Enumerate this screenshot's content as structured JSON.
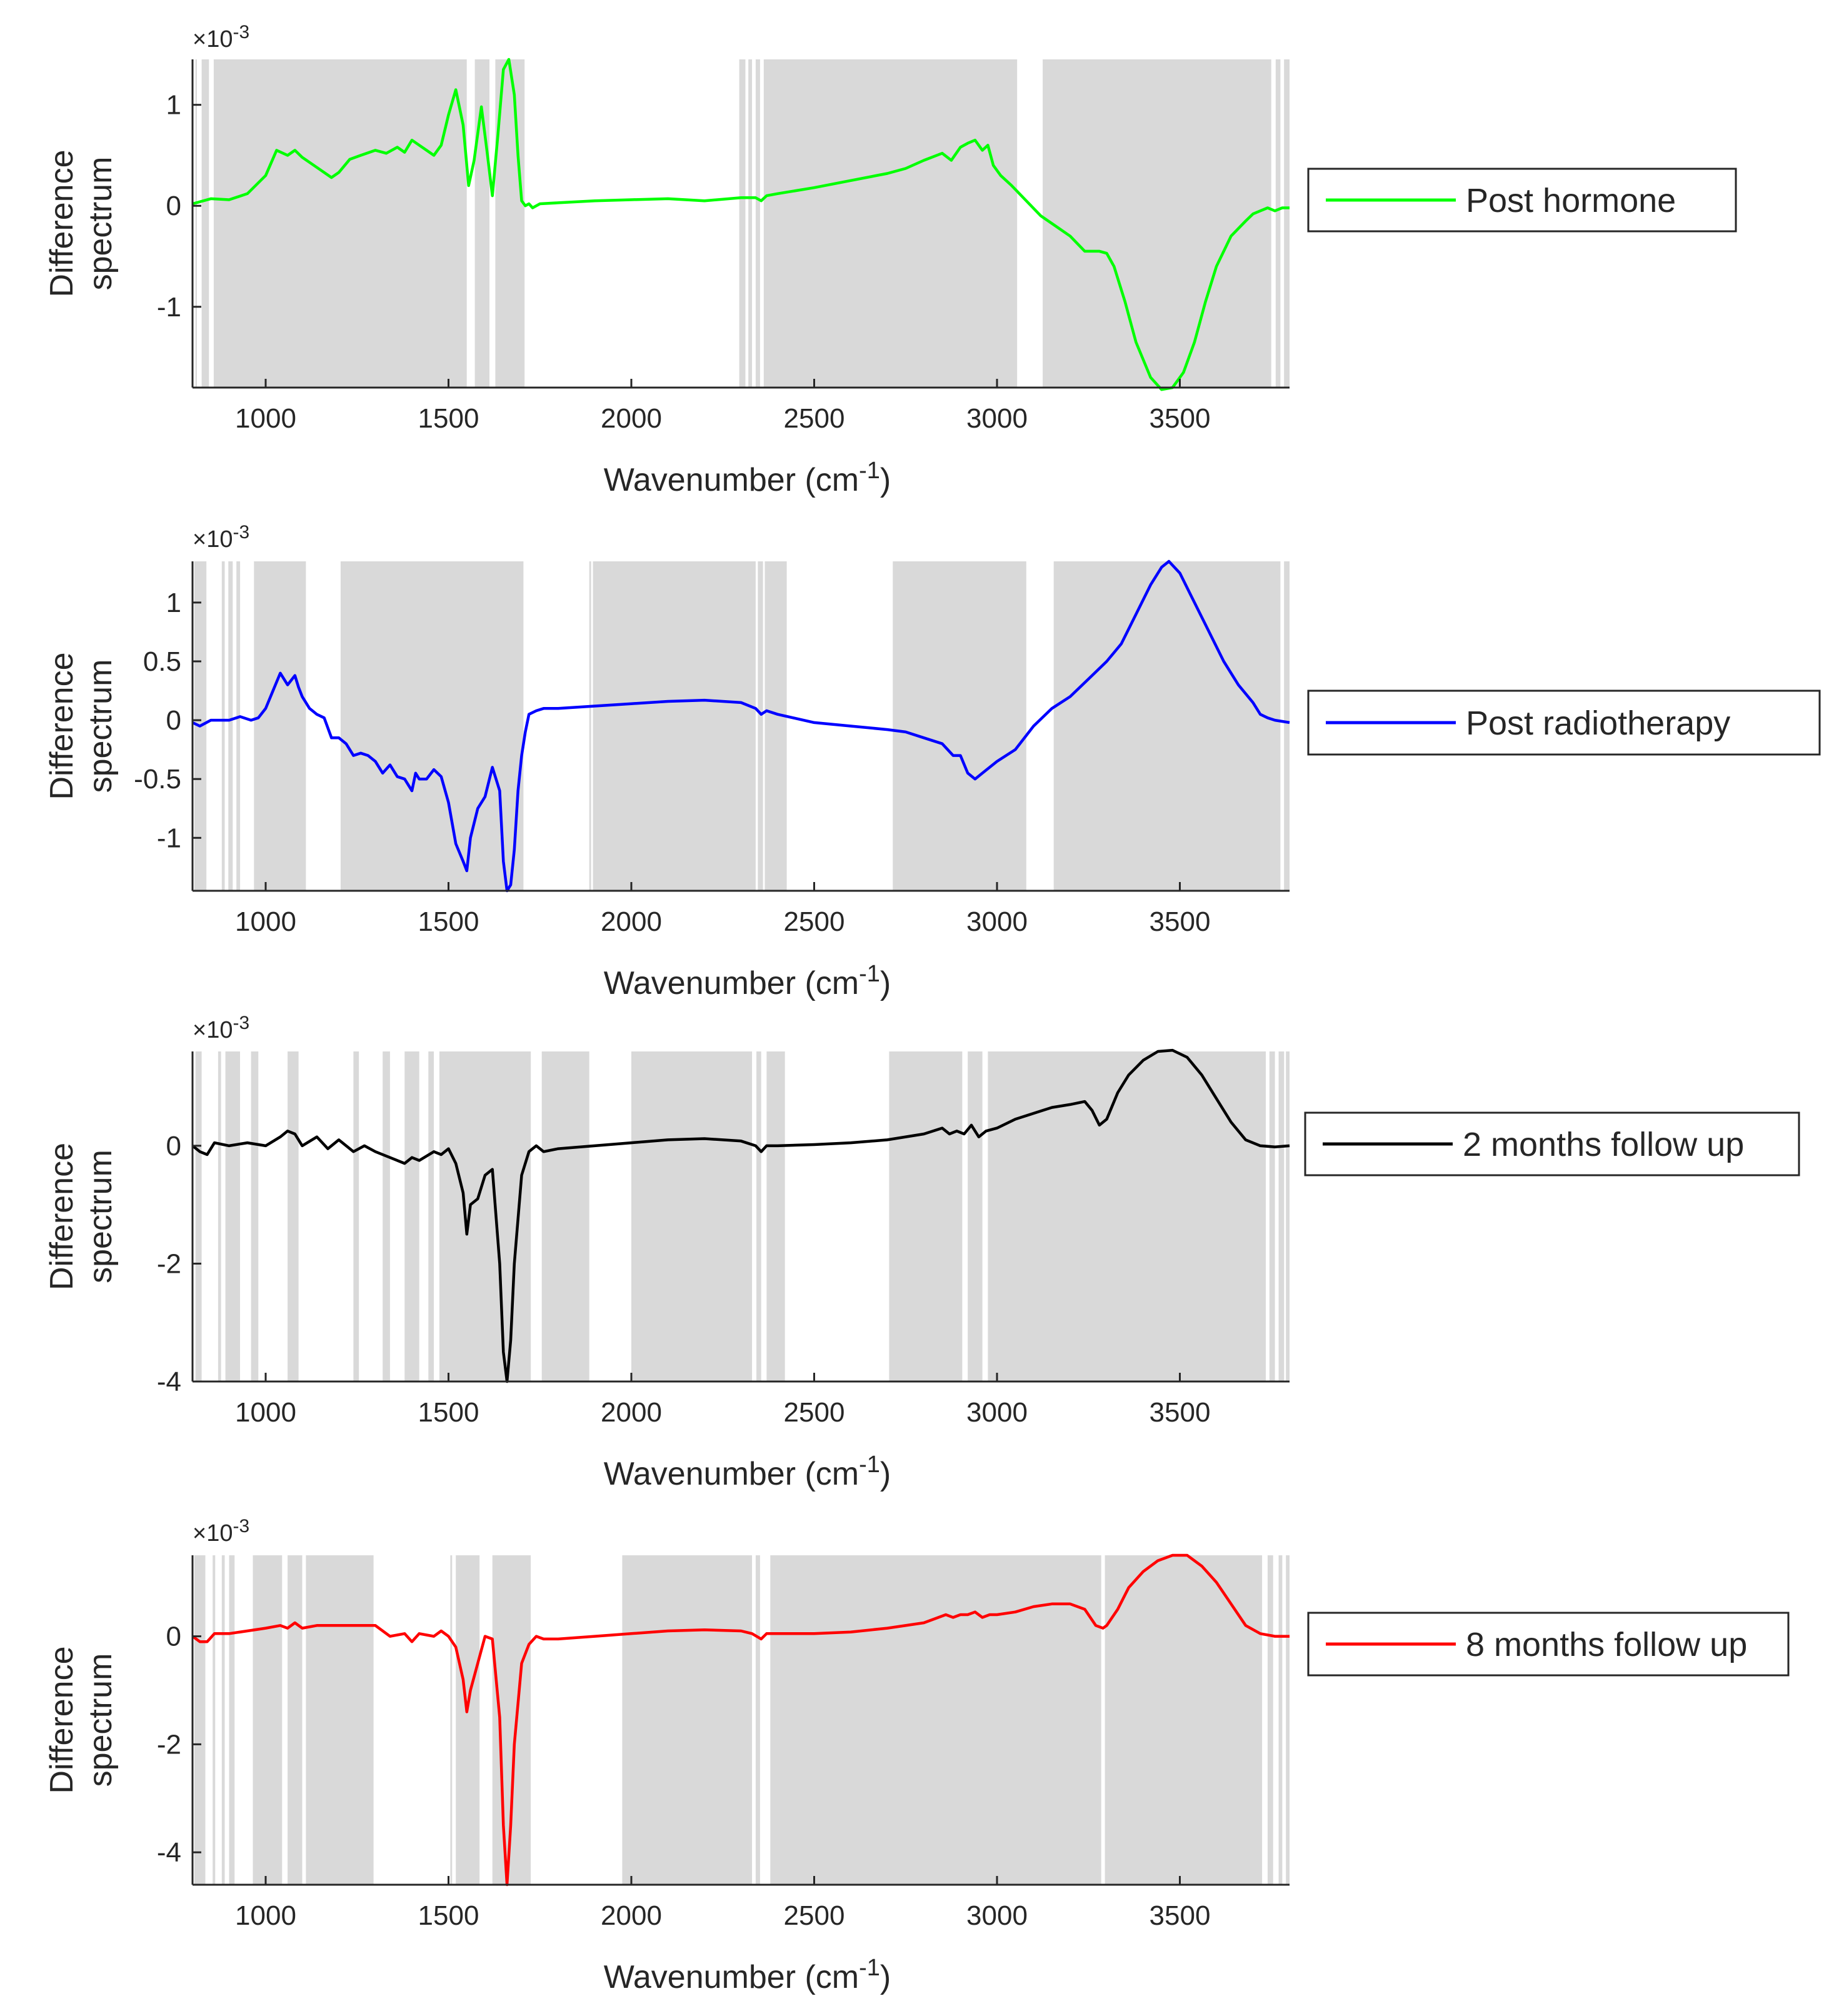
{
  "figure": {
    "xlabel": "Wavenumber (cm",
    "xlabel_exp": "-1",
    "xlabel_end": ")",
    "ylabel_line1": "Difference",
    "ylabel_line2": "spectrum",
    "multiplier_prefix": "×10",
    "multiplier_exp": "-3"
  },
  "chart_data": [
    {
      "type": "line",
      "legend": "Post hormone",
      "color": "#00ff00",
      "xlim": [
        800,
        3800
      ],
      "ylim": [
        -1.8,
        1.45
      ],
      "yticks": [
        1,
        0,
        -1
      ],
      "ytick_labels": [
        "1",
        "0",
        "-1"
      ],
      "xticks": [
        1000,
        1500,
        2000,
        2500,
        3000,
        3500
      ],
      "xtick_labels": [
        "1000",
        "1500",
        "2000",
        "2500",
        "3000",
        "3500"
      ],
      "shaded_regions": [
        [
          808,
          812
        ],
        [
          825,
          845
        ],
        [
          858,
          1550
        ],
        [
          1572,
          1612
        ],
        [
          1628,
          1708
        ],
        [
          2295,
          2312
        ],
        [
          2320,
          2330
        ],
        [
          2340,
          2352
        ],
        [
          2362,
          3055
        ],
        [
          3125,
          3750
        ],
        [
          3762,
          3775
        ],
        [
          3785,
          3800
        ]
      ],
      "x": [
        800,
        850,
        900,
        950,
        1000,
        1030,
        1060,
        1080,
        1100,
        1140,
        1180,
        1200,
        1230,
        1260,
        1300,
        1330,
        1360,
        1380,
        1400,
        1420,
        1440,
        1460,
        1480,
        1500,
        1520,
        1540,
        1555,
        1570,
        1590,
        1605,
        1620,
        1635,
        1650,
        1665,
        1680,
        1690,
        1700,
        1710,
        1720,
        1730,
        1750,
        1800,
        1900,
        2000,
        2100,
        2200,
        2300,
        2340,
        2355,
        2370,
        2400,
        2500,
        2600,
        2700,
        2750,
        2800,
        2850,
        2875,
        2900,
        2920,
        2940,
        2960,
        2975,
        2990,
        3010,
        3040,
        3080,
        3120,
        3160,
        3200,
        3240,
        3280,
        3300,
        3320,
        3350,
        3380,
        3420,
        3450,
        3480,
        3510,
        3540,
        3570,
        3600,
        3640,
        3680,
        3700,
        3720,
        3740,
        3760,
        3780,
        3800
      ],
      "y": [
        0.02,
        0.07,
        0.06,
        0.12,
        0.3,
        0.55,
        0.5,
        0.55,
        0.48,
        0.38,
        0.28,
        0.33,
        0.46,
        0.5,
        0.55,
        0.52,
        0.58,
        0.53,
        0.65,
        0.6,
        0.55,
        0.5,
        0.6,
        0.9,
        1.15,
        0.8,
        0.2,
        0.45,
        0.98,
        0.55,
        0.1,
        0.7,
        1.35,
        1.45,
        1.1,
        0.5,
        0.05,
        0.0,
        0.02,
        -0.02,
        0.02,
        0.03,
        0.05,
        0.06,
        0.07,
        0.05,
        0.08,
        0.08,
        0.05,
        0.1,
        0.12,
        0.18,
        0.25,
        0.32,
        0.37,
        0.45,
        0.52,
        0.45,
        0.58,
        0.62,
        0.65,
        0.55,
        0.6,
        0.4,
        0.3,
        0.2,
        0.05,
        -0.1,
        -0.2,
        -0.3,
        -0.45,
        -0.45,
        -0.47,
        -0.6,
        -0.95,
        -1.35,
        -1.7,
        -1.82,
        -1.8,
        -1.65,
        -1.35,
        -0.95,
        -0.6,
        -0.3,
        -0.15,
        -0.08,
        -0.05,
        -0.02,
        -0.05,
        -0.02,
        -0.02
      ]
    },
    {
      "type": "line",
      "legend": "Post radiotherapy",
      "color": "#0000ff",
      "xlim": [
        800,
        3800
      ],
      "ylim": [
        -1.45,
        1.35
      ],
      "yticks": [
        1,
        0.5,
        0,
        -0.5,
        -1
      ],
      "ytick_labels": [
        "1",
        "0.5",
        "0",
        "-0.5",
        "-1"
      ],
      "xticks": [
        1000,
        1500,
        2000,
        2500,
        3000,
        3500
      ],
      "xtick_labels": [
        "1000",
        "1500",
        "2000",
        "2500",
        "3000",
        "3500"
      ],
      "shaded_regions": [
        [
          805,
          838
        ],
        [
          880,
          888
        ],
        [
          898,
          910
        ],
        [
          920,
          930
        ],
        [
          968,
          1110
        ],
        [
          1205,
          1705
        ],
        [
          1885,
          1890
        ],
        [
          1895,
          2340
        ],
        [
          2346,
          2360
        ],
        [
          2365,
          2425
        ],
        [
          2715,
          3080
        ],
        [
          3155,
          3775
        ],
        [
          3785,
          3800
        ]
      ],
      "x": [
        800,
        820,
        850,
        880,
        900,
        930,
        960,
        980,
        1000,
        1020,
        1040,
        1060,
        1080,
        1090,
        1100,
        1120,
        1140,
        1160,
        1180,
        1200,
        1220,
        1240,
        1260,
        1280,
        1300,
        1320,
        1340,
        1360,
        1380,
        1400,
        1410,
        1420,
        1440,
        1460,
        1480,
        1500,
        1520,
        1540,
        1550,
        1560,
        1580,
        1600,
        1620,
        1640,
        1650,
        1660,
        1670,
        1680,
        1690,
        1700,
        1710,
        1720,
        1740,
        1760,
        1800,
        1900,
        2000,
        2100,
        2200,
        2300,
        2340,
        2355,
        2370,
        2400,
        2500,
        2600,
        2700,
        2750,
        2800,
        2850,
        2880,
        2900,
        2920,
        2940,
        2960,
        2980,
        3000,
        3050,
        3100,
        3150,
        3200,
        3250,
        3300,
        3340,
        3380,
        3420,
        3450,
        3470,
        3500,
        3540,
        3580,
        3620,
        3660,
        3700,
        3720,
        3740,
        3760,
        3780,
        3800
      ],
      "y": [
        -0.02,
        -0.05,
        0.0,
        0.0,
        0.0,
        0.03,
        0.0,
        0.02,
        0.1,
        0.25,
        0.4,
        0.3,
        0.38,
        0.28,
        0.2,
        0.1,
        0.05,
        0.02,
        -0.15,
        -0.15,
        -0.2,
        -0.3,
        -0.28,
        -0.3,
        -0.35,
        -0.45,
        -0.38,
        -0.48,
        -0.5,
        -0.6,
        -0.45,
        -0.5,
        -0.5,
        -0.42,
        -0.48,
        -0.7,
        -1.05,
        -1.2,
        -1.28,
        -1.0,
        -0.75,
        -0.65,
        -0.4,
        -0.6,
        -1.2,
        -1.45,
        -1.4,
        -1.1,
        -0.6,
        -0.3,
        -0.1,
        0.05,
        0.08,
        0.1,
        0.1,
        0.12,
        0.14,
        0.16,
        0.17,
        0.15,
        0.1,
        0.05,
        0.08,
        0.05,
        -0.02,
        -0.05,
        -0.08,
        -0.1,
        -0.15,
        -0.2,
        -0.3,
        -0.3,
        -0.45,
        -0.5,
        -0.45,
        -0.4,
        -0.35,
        -0.25,
        -0.05,
        0.1,
        0.2,
        0.35,
        0.5,
        0.65,
        0.9,
        1.15,
        1.3,
        1.35,
        1.25,
        1.0,
        0.75,
        0.5,
        0.3,
        0.15,
        0.05,
        0.02,
        0.0,
        -0.01,
        -0.02
      ]
    },
    {
      "type": "line",
      "legend": "2 months follow up",
      "color": "#000000",
      "xlim": [
        800,
        3800
      ],
      "ylim": [
        -4.0,
        1.6
      ],
      "yticks": [
        0,
        -2,
        -4
      ],
      "ytick_labels": [
        "0",
        "-2",
        "-4"
      ],
      "xticks": [
        1000,
        1500,
        2000,
        2500,
        3000,
        3500
      ],
      "xtick_labels": [
        "1000",
        "1500",
        "2000",
        "2500",
        "3000",
        "3500"
      ],
      "shaded_regions": [
        [
          808,
          825
        ],
        [
          870,
          878
        ],
        [
          890,
          930
        ],
        [
          960,
          980
        ],
        [
          1060,
          1090
        ],
        [
          1240,
          1255
        ],
        [
          1320,
          1340
        ],
        [
          1380,
          1420
        ],
        [
          1445,
          1460
        ],
        [
          1475,
          1725
        ],
        [
          1755,
          1885
        ],
        [
          2000,
          2330
        ],
        [
          2342,
          2355
        ],
        [
          2370,
          2420
        ],
        [
          2705,
          2905
        ],
        [
          2920,
          2960
        ],
        [
          2975,
          3735
        ],
        [
          3745,
          3760
        ],
        [
          3770,
          3785
        ],
        [
          3790,
          3800
        ]
      ],
      "x": [
        800,
        820,
        840,
        860,
        900,
        950,
        1000,
        1040,
        1060,
        1080,
        1100,
        1140,
        1170,
        1200,
        1240,
        1270,
        1300,
        1340,
        1380,
        1400,
        1420,
        1460,
        1480,
        1500,
        1520,
        1540,
        1550,
        1560,
        1580,
        1600,
        1620,
        1640,
        1650,
        1660,
        1670,
        1680,
        1700,
        1720,
        1740,
        1760,
        1800,
        1900,
        2000,
        2100,
        2200,
        2300,
        2340,
        2355,
        2370,
        2400,
        2500,
        2600,
        2700,
        2800,
        2850,
        2870,
        2890,
        2910,
        2930,
        2950,
        2970,
        3000,
        3050,
        3100,
        3150,
        3200,
        3240,
        3260,
        3280,
        3300,
        3330,
        3360,
        3400,
        3440,
        3480,
        3520,
        3560,
        3600,
        3640,
        3680,
        3720,
        3760,
        3800
      ],
      "y": [
        0.0,
        -0.1,
        -0.15,
        0.05,
        0.0,
        0.05,
        0.0,
        0.15,
        0.25,
        0.2,
        0.0,
        0.15,
        -0.05,
        0.1,
        -0.1,
        0.0,
        -0.1,
        -0.2,
        -0.3,
        -0.2,
        -0.25,
        -0.1,
        -0.15,
        -0.05,
        -0.3,
        -0.8,
        -1.5,
        -1.0,
        -0.9,
        -0.5,
        -0.4,
        -2.0,
        -3.5,
        -4.0,
        -3.3,
        -2.0,
        -0.5,
        -0.1,
        0.0,
        -0.1,
        -0.05,
        0.0,
        0.05,
        0.1,
        0.12,
        0.08,
        0.0,
        -0.1,
        0.0,
        0.0,
        0.02,
        0.05,
        0.1,
        0.2,
        0.3,
        0.2,
        0.25,
        0.2,
        0.35,
        0.15,
        0.25,
        0.3,
        0.45,
        0.55,
        0.65,
        0.7,
        0.75,
        0.6,
        0.35,
        0.45,
        0.9,
        1.2,
        1.45,
        1.6,
        1.62,
        1.5,
        1.2,
        0.8,
        0.4,
        0.1,
        0.0,
        -0.02,
        0.0
      ]
    },
    {
      "type": "line",
      "legend": "8 months follow up",
      "color": "#ff0000",
      "xlim": [
        800,
        3800
      ],
      "ylim": [
        -4.6,
        1.5
      ],
      "yticks": [
        0,
        -2,
        -4
      ],
      "ytick_labels": [
        "0",
        "-2",
        "-4"
      ],
      "xticks": [
        1000,
        1500,
        2000,
        2500,
        3000,
        3500
      ],
      "xtick_labels": [
        "1000",
        "1500",
        "2000",
        "2500",
        "3000",
        "3500"
      ],
      "shaded_regions": [
        [
          805,
          835
        ],
        [
          855,
          862
        ],
        [
          880,
          888
        ],
        [
          900,
          915
        ],
        [
          965,
          1045
        ],
        [
          1060,
          1100
        ],
        [
          1110,
          1295
        ],
        [
          1505,
          1510
        ],
        [
          1520,
          1585
        ],
        [
          1620,
          1725
        ],
        [
          1975,
          2330
        ],
        [
          2340,
          2352
        ],
        [
          2380,
          3285
        ],
        [
          3295,
          3725
        ],
        [
          3740,
          3755
        ],
        [
          3770,
          3780
        ],
        [
          3790,
          3800
        ]
      ],
      "x": [
        800,
        820,
        840,
        860,
        900,
        950,
        1000,
        1040,
        1060,
        1080,
        1100,
        1140,
        1200,
        1240,
        1280,
        1300,
        1340,
        1380,
        1400,
        1420,
        1460,
        1480,
        1500,
        1520,
        1540,
        1550,
        1560,
        1580,
        1600,
        1620,
        1640,
        1650,
        1660,
        1670,
        1680,
        1700,
        1720,
        1740,
        1760,
        1800,
        1900,
        2000,
        2100,
        2200,
        2300,
        2330,
        2355,
        2370,
        2400,
        2500,
        2600,
        2700,
        2800,
        2860,
        2880,
        2900,
        2920,
        2940,
        2960,
        2980,
        3000,
        3050,
        3100,
        3150,
        3200,
        3240,
        3270,
        3290,
        3300,
        3330,
        3360,
        3400,
        3440,
        3480,
        3520,
        3560,
        3600,
        3640,
        3680,
        3720,
        3760,
        3800
      ],
      "y": [
        0.0,
        -0.1,
        -0.1,
        0.05,
        0.05,
        0.1,
        0.15,
        0.2,
        0.15,
        0.25,
        0.15,
        0.2,
        0.2,
        0.2,
        0.2,
        0.2,
        0.0,
        0.05,
        -0.1,
        0.05,
        0.0,
        0.1,
        0.0,
        -0.2,
        -0.8,
        -1.4,
        -1.0,
        -0.5,
        0.0,
        -0.05,
        -1.5,
        -3.5,
        -4.6,
        -3.5,
        -2.0,
        -0.5,
        -0.15,
        0.0,
        -0.05,
        -0.05,
        0.0,
        0.05,
        0.1,
        0.12,
        0.1,
        0.05,
        -0.05,
        0.05,
        0.05,
        0.05,
        0.08,
        0.15,
        0.25,
        0.4,
        0.35,
        0.4,
        0.4,
        0.45,
        0.35,
        0.4,
        0.4,
        0.45,
        0.55,
        0.6,
        0.6,
        0.5,
        0.2,
        0.15,
        0.2,
        0.5,
        0.9,
        1.2,
        1.4,
        1.5,
        1.5,
        1.3,
        1.0,
        0.6,
        0.2,
        0.05,
        0.0,
        0.0
      ]
    }
  ]
}
